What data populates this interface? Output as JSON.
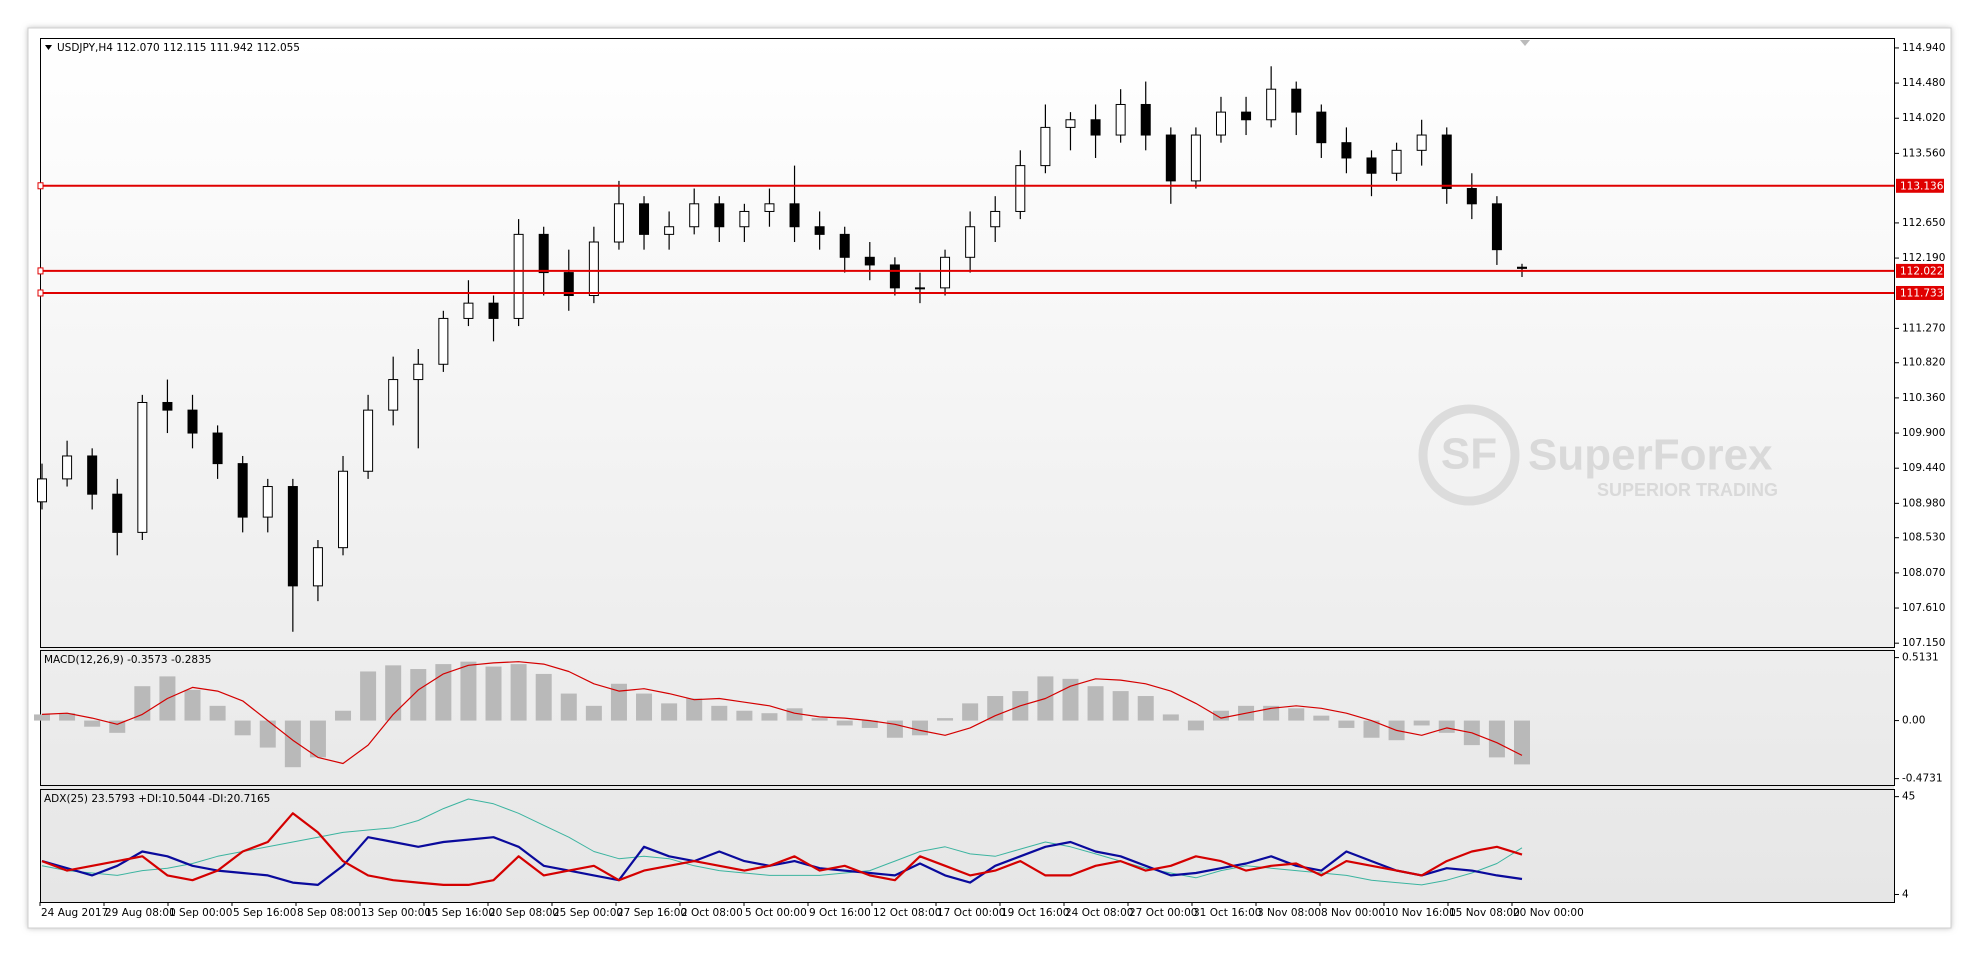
{
  "chart_data": [
    {
      "type": "candlestick",
      "title": "USDJPY,H4  112.070 112.115 111.942 112.055",
      "up_color": "#ffffff",
      "down_color": "#000000",
      "level_color": "#e00000",
      "ylim": [
        107.1,
        115.07
      ],
      "yticks": [
        {
          "value": 114.94,
          "label": "114.940"
        },
        {
          "value": 114.48,
          "label": "114.480"
        },
        {
          "value": 114.02,
          "label": "114.020"
        },
        {
          "value": 113.56,
          "label": "113.560"
        },
        {
          "value": 112.65,
          "label": "112.650"
        },
        {
          "value": 112.19,
          "label": "112.190"
        },
        {
          "value": 111.27,
          "label": "111.270"
        },
        {
          "value": 110.82,
          "label": "110.820"
        },
        {
          "value": 110.36,
          "label": "110.360"
        },
        {
          "value": 109.9,
          "label": "109.900"
        },
        {
          "value": 109.44,
          "label": "109.440"
        },
        {
          "value": 108.98,
          "label": "108.980"
        },
        {
          "value": 108.53,
          "label": "108.530"
        },
        {
          "value": 108.07,
          "label": "108.070"
        },
        {
          "value": 107.61,
          "label": "107.610"
        },
        {
          "value": 107.15,
          "label": "107.150"
        }
      ],
      "levels": [
        113.136,
        112.022,
        111.733
      ],
      "ohlc": [
        [
          109.0,
          109.5,
          108.9,
          109.3
        ],
        [
          109.3,
          109.8,
          109.2,
          109.6
        ],
        [
          109.6,
          109.7,
          108.9,
          109.1
        ],
        [
          109.1,
          109.3,
          108.3,
          108.6
        ],
        [
          108.6,
          110.4,
          108.5,
          110.3
        ],
        [
          110.3,
          110.6,
          109.9,
          110.2
        ],
        [
          110.2,
          110.4,
          109.7,
          109.9
        ],
        [
          109.9,
          110.0,
          109.3,
          109.5
        ],
        [
          109.5,
          109.6,
          108.6,
          108.8
        ],
        [
          108.8,
          109.3,
          108.6,
          109.2
        ],
        [
          109.2,
          109.3,
          107.3,
          107.9
        ],
        [
          107.9,
          108.5,
          107.7,
          108.4
        ],
        [
          108.4,
          109.6,
          108.3,
          109.4
        ],
        [
          109.4,
          110.4,
          109.3,
          110.2
        ],
        [
          110.2,
          110.9,
          110.0,
          110.6
        ],
        [
          110.6,
          111.0,
          109.7,
          110.8
        ],
        [
          110.8,
          111.5,
          110.7,
          111.4
        ],
        [
          111.4,
          111.9,
          111.3,
          111.6
        ],
        [
          111.6,
          111.7,
          111.1,
          111.4
        ],
        [
          111.4,
          112.7,
          111.3,
          112.5
        ],
        [
          112.5,
          112.6,
          111.7,
          112.0
        ],
        [
          112.0,
          112.3,
          111.5,
          111.7
        ],
        [
          111.7,
          112.6,
          111.6,
          112.4
        ],
        [
          112.4,
          113.2,
          112.3,
          112.9
        ],
        [
          112.9,
          113.0,
          112.3,
          112.5
        ],
        [
          112.5,
          112.8,
          112.3,
          112.6
        ],
        [
          112.6,
          113.1,
          112.5,
          112.9
        ],
        [
          112.9,
          113.0,
          112.4,
          112.6
        ],
        [
          112.6,
          112.9,
          112.4,
          112.8
        ],
        [
          112.8,
          113.1,
          112.6,
          112.9
        ],
        [
          112.9,
          113.4,
          112.4,
          112.6
        ],
        [
          112.6,
          112.8,
          112.3,
          112.5
        ],
        [
          112.5,
          112.6,
          112.0,
          112.2
        ],
        [
          112.2,
          112.4,
          111.9,
          112.1
        ],
        [
          112.1,
          112.2,
          111.7,
          111.8
        ],
        [
          111.8,
          112.0,
          111.6,
          111.8
        ],
        [
          111.8,
          112.3,
          111.7,
          112.2
        ],
        [
          112.2,
          112.8,
          112.0,
          112.6
        ],
        [
          112.6,
          113.0,
          112.4,
          112.8
        ],
        [
          112.8,
          113.6,
          112.7,
          113.4
        ],
        [
          113.4,
          114.2,
          113.3,
          113.9
        ],
        [
          113.9,
          114.1,
          113.6,
          114.0
        ],
        [
          114.0,
          114.2,
          113.5,
          113.8
        ],
        [
          113.8,
          114.4,
          113.7,
          114.2
        ],
        [
          114.2,
          114.5,
          113.6,
          113.8
        ],
        [
          113.8,
          113.9,
          112.9,
          113.2
        ],
        [
          113.2,
          113.9,
          113.1,
          113.8
        ],
        [
          113.8,
          114.3,
          113.7,
          114.1
        ],
        [
          114.1,
          114.3,
          113.8,
          114.0
        ],
        [
          114.0,
          114.7,
          113.9,
          114.4
        ],
        [
          114.4,
          114.5,
          113.8,
          114.1
        ],
        [
          114.1,
          114.2,
          113.5,
          113.7
        ],
        [
          113.7,
          113.9,
          113.3,
          113.5
        ],
        [
          113.5,
          113.6,
          113.0,
          113.3
        ],
        [
          113.3,
          113.7,
          113.2,
          113.6
        ],
        [
          113.6,
          114.0,
          113.4,
          113.8
        ],
        [
          113.8,
          113.9,
          112.9,
          113.1
        ],
        [
          113.1,
          113.3,
          112.7,
          112.9
        ],
        [
          112.9,
          113.0,
          112.1,
          112.3
        ],
        [
          112.07,
          112.115,
          111.942,
          112.055
        ]
      ],
      "watermark": {
        "logo": "SF",
        "brand": "SuperForex",
        "tagline": "SUPERIOR TRADING"
      }
    },
    {
      "type": "macd",
      "title": "MACD(12,26,9) -0.3573 -0.2835",
      "histogram_color": "#b9b9b9",
      "signal_color": "#d40000",
      "ylim": [
        -0.525,
        0.575
      ],
      "yticks": [
        0.5131,
        {
          "value": 0,
          "label": "0.00"
        },
        -0.4731
      ],
      "histogram": [
        0.05,
        0.06,
        -0.05,
        -0.1,
        0.28,
        0.36,
        0.25,
        0.12,
        -0.12,
        -0.22,
        -0.38,
        -0.3,
        0.08,
        0.4,
        0.45,
        0.42,
        0.46,
        0.48,
        0.44,
        0.46,
        0.38,
        0.22,
        0.12,
        0.3,
        0.22,
        0.14,
        0.18,
        0.12,
        0.08,
        0.06,
        0.1,
        0.02,
        -0.04,
        -0.06,
        -0.14,
        -0.12,
        0.02,
        0.14,
        0.2,
        0.24,
        0.36,
        0.34,
        0.28,
        0.24,
        0.2,
        0.05,
        -0.08,
        0.08,
        0.12,
        0.12,
        0.1,
        0.04,
        -0.06,
        -0.14,
        -0.16,
        -0.04,
        -0.1,
        -0.2,
        -0.3,
        -0.3573
      ],
      "signal": [
        0.05,
        0.06,
        0.02,
        -0.03,
        0.05,
        0.18,
        0.27,
        0.24,
        0.16,
        0.0,
        -0.16,
        -0.3,
        -0.35,
        -0.2,
        0.05,
        0.25,
        0.38,
        0.45,
        0.47,
        0.48,
        0.46,
        0.4,
        0.3,
        0.24,
        0.26,
        0.22,
        0.17,
        0.18,
        0.15,
        0.12,
        0.06,
        0.03,
        0.02,
        0.0,
        -0.03,
        -0.08,
        -0.12,
        -0.06,
        0.04,
        0.12,
        0.18,
        0.28,
        0.34,
        0.33,
        0.3,
        0.24,
        0.14,
        0.02,
        0.06,
        0.1,
        0.12,
        0.1,
        0.06,
        0.0,
        -0.08,
        -0.12,
        -0.06,
        -0.1,
        -0.18,
        -0.2835
      ]
    },
    {
      "type": "adx",
      "title": "ADX(25) 23.5793 +DI:10.5044 -DI:20.7165",
      "ylim": [
        0.85,
        48.2
      ],
      "yticks": [
        45,
        4
      ],
      "adx": {
        "color": "#3cb4a0",
        "values": [
          16,
          14,
          13,
          12,
          14,
          15,
          17,
          20,
          22,
          24,
          26,
          28,
          30,
          31,
          32,
          35,
          40,
          44,
          42,
          38,
          33,
          28,
          22,
          19,
          20,
          19,
          16,
          14,
          13,
          12,
          12,
          12,
          13,
          14,
          18,
          22,
          24,
          21,
          20,
          23,
          26,
          24,
          21,
          18,
          15,
          13,
          11,
          14,
          16,
          15,
          14,
          13,
          12,
          10,
          9,
          8,
          10,
          13,
          17,
          23.5793
        ]
      },
      "plus_di": {
        "color": "#0a0a9c",
        "values": [
          18,
          15,
          12,
          16,
          22,
          20,
          16,
          14,
          13,
          12,
          9,
          8,
          16,
          28,
          26,
          24,
          26,
          27,
          28,
          24,
          16,
          14,
          12,
          10,
          24,
          20,
          18,
          22,
          18,
          16,
          18,
          15,
          14,
          13,
          12,
          17,
          12,
          9,
          16,
          20,
          24,
          26,
          22,
          20,
          16,
          12,
          13,
          15,
          17,
          20,
          16,
          14,
          22,
          18,
          14,
          12,
          15,
          14,
          12,
          10.5044
        ]
      },
      "minus_di": {
        "color": "#d40000",
        "values": [
          18,
          14,
          16,
          18,
          20,
          12,
          10,
          14,
          22,
          26,
          38,
          30,
          18,
          12,
          10,
          9,
          8,
          8,
          10,
          20,
          12,
          14,
          16,
          10,
          14,
          16,
          18,
          16,
          14,
          16,
          20,
          14,
          16,
          12,
          10,
          20,
          16,
          12,
          14,
          18,
          12,
          12,
          16,
          18,
          14,
          16,
          20,
          18,
          14,
          16,
          17,
          12,
          18,
          16,
          14,
          12,
          18,
          22,
          24,
          20.7165
        ]
      },
      "x_labels": [
        "24 Aug 2017",
        "29 Aug 08:00",
        "1 Sep 00:00",
        "5 Sep 16:00",
        "8 Sep 08:00",
        "13 Sep 00:00",
        "15 Sep 16:00",
        "20 Sep 08:00",
        "25 Sep 00:00",
        "27 Sep 16:00",
        "2 Oct 08:00",
        "5 Oct 00:00",
        "9 Oct 16:00",
        "12 Oct 08:00",
        "17 Oct 00:00",
        "19 Oct 16:00",
        "24 Oct 08:00",
        "27 Oct 00:00",
        "31 Oct 16:00",
        "3 Nov 08:00",
        "8 Nov 00:00",
        "10 Nov 16:00",
        "15 Nov 08:00",
        "20 Nov 00:00"
      ]
    }
  ]
}
